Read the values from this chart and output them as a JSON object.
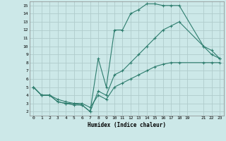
{
  "xlabel": "Humidex (Indice chaleur)",
  "bg_color": "#cce8e8",
  "line_color": "#2e7d6e",
  "grid_color": "#b0cccc",
  "xlim": [
    -0.5,
    23.5
  ],
  "ylim": [
    1.5,
    15.5
  ],
  "xticks": [
    0,
    1,
    2,
    3,
    4,
    5,
    6,
    7,
    8,
    9,
    10,
    11,
    12,
    13,
    14,
    15,
    16,
    17,
    18,
    19,
    21,
    22,
    23
  ],
  "yticks": [
    2,
    3,
    4,
    5,
    6,
    7,
    8,
    9,
    10,
    11,
    12,
    13,
    14,
    15
  ],
  "line1_x": [
    0,
    1,
    2,
    3,
    4,
    5,
    6,
    7,
    8,
    9,
    10,
    11,
    12,
    13,
    14,
    15,
    16,
    17,
    18,
    21,
    22,
    23
  ],
  "line1_y": [
    5,
    4,
    4,
    3.2,
    3,
    3,
    2.8,
    2,
    8.5,
    5,
    12,
    12,
    14,
    14.5,
    15.2,
    15.2,
    15,
    15,
    15,
    10,
    9,
    8.5
  ],
  "line2_x": [
    0,
    1,
    2,
    3,
    4,
    5,
    6,
    7,
    8,
    9,
    10,
    11,
    12,
    13,
    14,
    15,
    16,
    17,
    18,
    21,
    22,
    23
  ],
  "line2_y": [
    5,
    4,
    4,
    3.2,
    3,
    2.8,
    2.8,
    2,
    4.5,
    4,
    6.5,
    7,
    8,
    9,
    10,
    11,
    12,
    12.5,
    13,
    10,
    9.5,
    8.5
  ],
  "line3_x": [
    0,
    1,
    2,
    3,
    4,
    5,
    6,
    7,
    8,
    9,
    10,
    11,
    12,
    13,
    14,
    15,
    16,
    17,
    18,
    21,
    22,
    23
  ],
  "line3_y": [
    5,
    4,
    4,
    3.5,
    3.2,
    3,
    3,
    2.5,
    4,
    3.5,
    5,
    5.5,
    6,
    6.5,
    7,
    7.5,
    7.8,
    8,
    8,
    8,
    8,
    8
  ]
}
